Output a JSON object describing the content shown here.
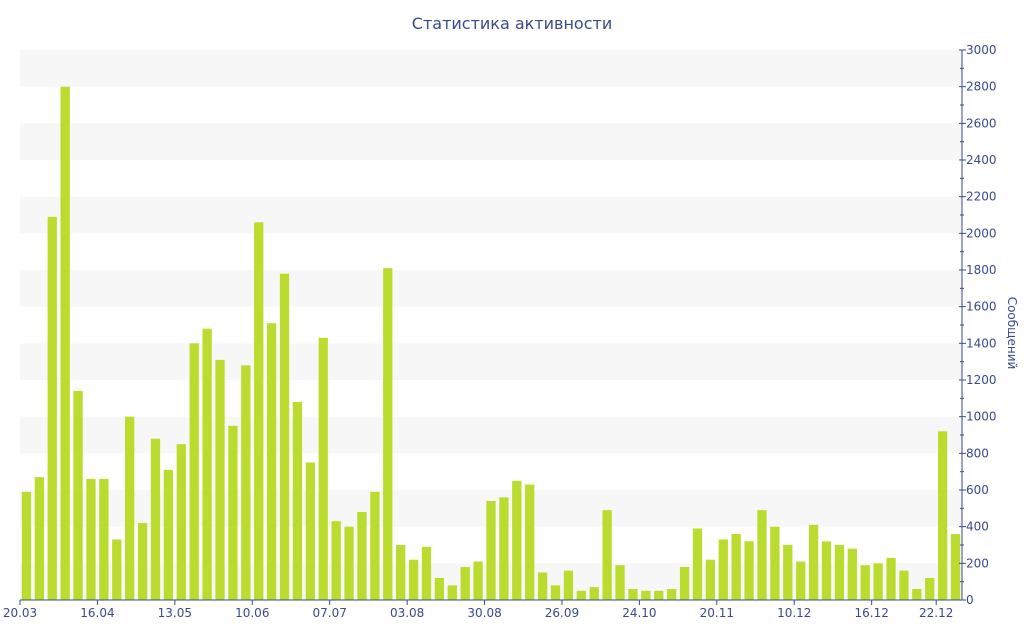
{
  "chart_data": {
    "type": "bar",
    "title": "Статистика активности",
    "ylabel": "Сообщений",
    "xlabel": "",
    "ylim": [
      0,
      3000
    ],
    "y_ticks": [
      0,
      200,
      400,
      600,
      800,
      1000,
      1200,
      1400,
      1600,
      1800,
      2000,
      2200,
      2400,
      2600,
      2800,
      3000
    ],
    "x_tick_labels": [
      "20.03",
      "16.04",
      "13.05",
      "10.06",
      "07.07",
      "03.08",
      "30.08",
      "26.09",
      "24.10",
      "20.11",
      "10.12",
      "16.12",
      "22.12"
    ],
    "x_tick_indices": [
      0,
      6,
      12,
      18,
      24,
      30,
      36,
      42,
      48,
      54,
      60,
      66,
      71
    ],
    "grid": "horizontal-bands",
    "y_axis_side": "right",
    "colors": {
      "bar": "#badc2e",
      "band": "#f7f7f7",
      "text": "#3a4a8c",
      "axis": "#3a4a8c"
    },
    "values": [
      590,
      670,
      2090,
      2800,
      1140,
      660,
      660,
      330,
      1000,
      420,
      880,
      710,
      850,
      1400,
      1480,
      1310,
      950,
      1280,
      2060,
      1510,
      1780,
      1080,
      750,
      1430,
      430,
      400,
      480,
      590,
      1810,
      300,
      220,
      290,
      120,
      80,
      180,
      210,
      540,
      560,
      650,
      630,
      150,
      80,
      160,
      50,
      70,
      490,
      190,
      60,
      50,
      50,
      60,
      180,
      390,
      220,
      330,
      360,
      320,
      490,
      400,
      300,
      210,
      410,
      320,
      300,
      280,
      190,
      200,
      230,
      160,
      60,
      120,
      920,
      360
    ]
  }
}
